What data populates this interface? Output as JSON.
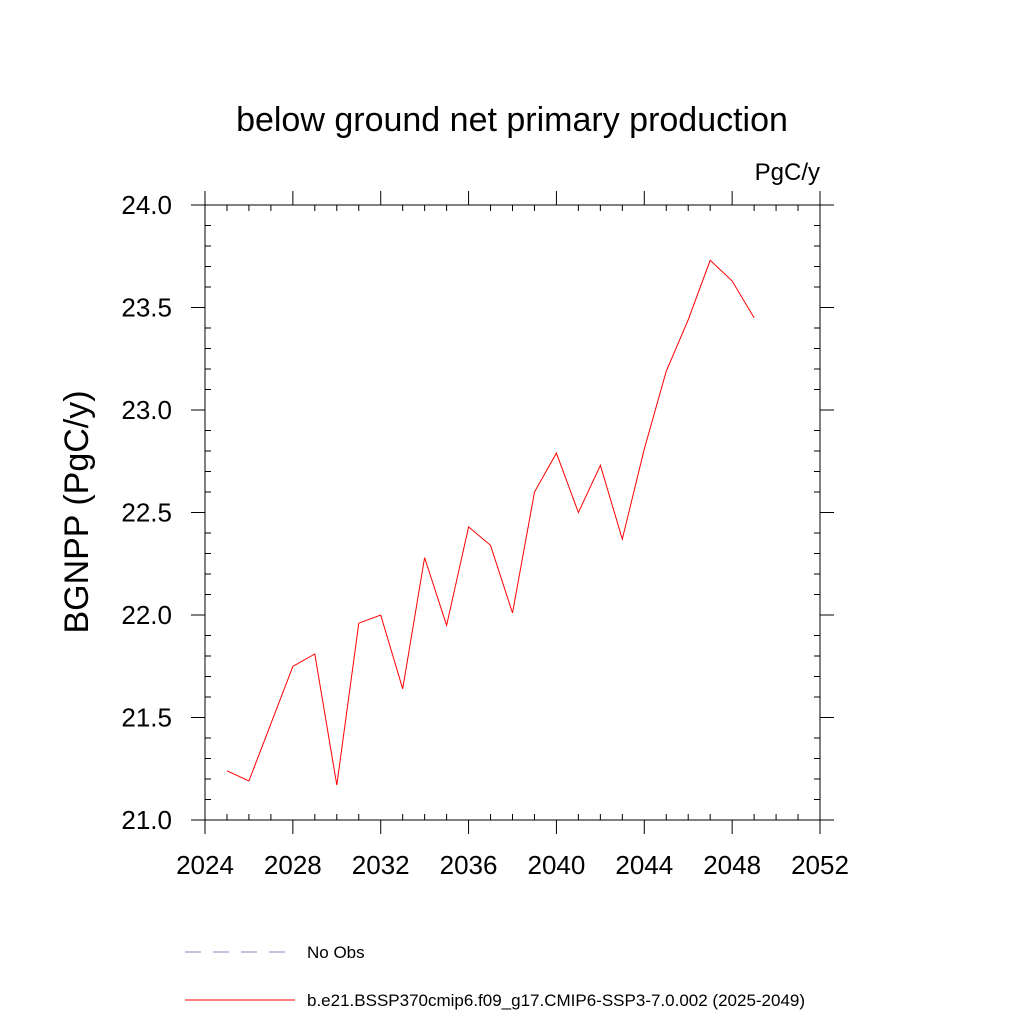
{
  "chart_data": {
    "type": "line",
    "title": "below ground net primary production",
    "units": "PgC/y",
    "ylabel": "BGNPP  (PgC/y)",
    "xlabel": "",
    "xlim": [
      2024,
      2052
    ],
    "ylim": [
      21.0,
      24.0
    ],
    "x_ticks": [
      2024,
      2028,
      2032,
      2036,
      2040,
      2044,
      2048,
      2052
    ],
    "y_ticks": [
      21.0,
      21.5,
      22.0,
      22.5,
      23.0,
      23.5,
      24.0
    ],
    "x_tick_labels": [
      "2024",
      "2028",
      "2032",
      "2036",
      "2040",
      "2044",
      "2048",
      "2052"
    ],
    "y_tick_labels": [
      "21.0",
      "21.5",
      "22.0",
      "22.5",
      "23.0",
      "23.5",
      "24.0"
    ],
    "grid": false,
    "legend_position": "bottom",
    "series": [
      {
        "name": "b.e21.BSSP370cmip6.f09_g17.CMIP6-SSP3-7.0.002 (2025-2049)",
        "color": "#ff0000",
        "dash": "solid",
        "x": [
          2025,
          2026,
          2027,
          2028,
          2029,
          2030,
          2031,
          2032,
          2033,
          2034,
          2035,
          2036,
          2037,
          2038,
          2039,
          2040,
          2041,
          2042,
          2043,
          2044,
          2045,
          2046,
          2047,
          2048,
          2049
        ],
        "y": [
          21.24,
          21.19,
          21.47,
          21.75,
          21.81,
          21.17,
          21.96,
          22.0,
          21.64,
          22.28,
          21.95,
          22.43,
          22.34,
          22.01,
          22.6,
          22.79,
          22.5,
          22.73,
          22.37,
          22.81,
          23.19,
          23.44,
          23.73,
          23.63,
          23.45
        ]
      }
    ],
    "legend": [
      {
        "label": "No Obs",
        "color": "#8080c0",
        "dash": "dashed"
      },
      {
        "label": "b.e21.BSSP370cmip6.f09_g17.CMIP6-SSP3-7.0.002 (2025-2049)",
        "color": "#ff0000",
        "dash": "solid"
      }
    ]
  }
}
